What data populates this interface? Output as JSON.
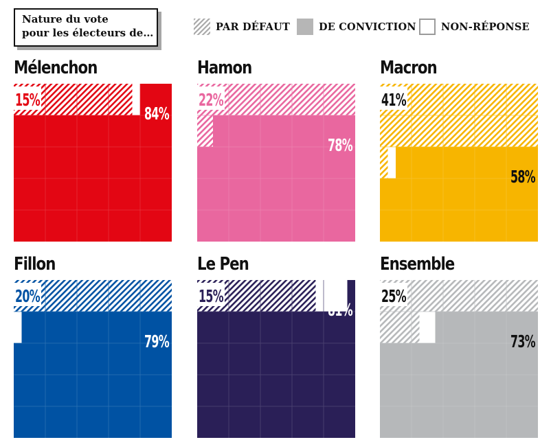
{
  "title_lines": [
    "Nature du vote",
    "pour les électeurs de…"
  ],
  "legend": [
    {
      "label": "PAR DÉFAUT",
      "kind": "hatched"
    },
    {
      "label": "DE CONVICTION",
      "kind": "solid",
      "color": "#b6b6b6"
    },
    {
      "label": "NON-RÉPONSE",
      "kind": "empty"
    }
  ],
  "chart_data": {
    "type": "bar",
    "title": "Nature du vote pour les électeurs de…",
    "series": [
      {
        "name": "PAR DÉFAUT"
      },
      {
        "name": "DE CONVICTION"
      },
      {
        "name": "NON-RÉPONSE"
      }
    ],
    "panels": [
      {
        "name": "Mélenchon",
        "color": "#e30613",
        "par_defaut": 15,
        "conviction": 84,
        "non_reponse": 1,
        "par_defaut_label": "15%",
        "conviction_label": "84%"
      },
      {
        "name": "Hamon",
        "color": "#e9679f",
        "par_defaut": 22,
        "conviction": 78,
        "non_reponse": 0,
        "par_defaut_label": "22%",
        "conviction_label": "78%"
      },
      {
        "name": "Macron",
        "color": "#f7b500",
        "par_defaut": 41,
        "conviction": 58,
        "non_reponse": 1,
        "par_defaut_label": "41%",
        "conviction_label": "58%"
      },
      {
        "name": "Fillon",
        "color": "#0052a3",
        "par_defaut": 20,
        "conviction": 79,
        "non_reponse": 1,
        "par_defaut_label": "20%",
        "conviction_label": "79%"
      },
      {
        "name": "Le Pen",
        "color": "#2a1f57",
        "par_defaut": 15,
        "conviction": 81,
        "non_reponse": 4,
        "par_defaut_label": "15%",
        "conviction_label": "81%"
      },
      {
        "name": "Ensemble",
        "color": "#b6b8ba",
        "par_defaut": 25,
        "conviction": 73,
        "non_reponse": 2,
        "par_defaut_label": "25%",
        "conviction_label": "73%"
      }
    ]
  }
}
